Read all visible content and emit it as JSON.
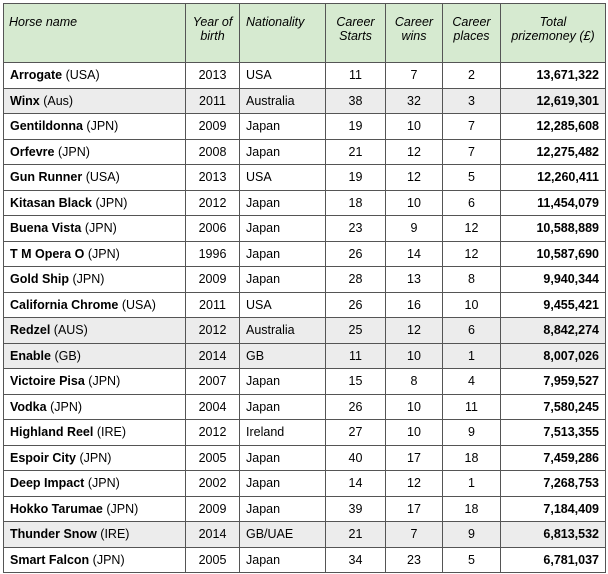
{
  "headers": {
    "name": "Horse name",
    "year": "Year of birth",
    "nationality": "Nationality",
    "starts": "Career Starts",
    "wins": "Career wins",
    "places": "Career places",
    "prize": "Total prizemoney (£)"
  },
  "rows": [
    {
      "name": "Arrogate",
      "country": "(USA)",
      "year": "2013",
      "nationality": "USA",
      "starts": "11",
      "wins": "7",
      "places": "2",
      "prize": "13,671,322",
      "shaded": false
    },
    {
      "name": "Winx",
      "country": "(Aus)",
      "year": "2011",
      "nationality": "Australia",
      "starts": "38",
      "wins": "32",
      "places": "3",
      "prize": "12,619,301",
      "shaded": true
    },
    {
      "name": "Gentildonna",
      "country": "(JPN)",
      "year": "2009",
      "nationality": "Japan",
      "starts": "19",
      "wins": "10",
      "places": "7",
      "prize": "12,285,608",
      "shaded": false
    },
    {
      "name": "Orfevre",
      "country": "(JPN)",
      "year": "2008",
      "nationality": "Japan",
      "starts": "21",
      "wins": "12",
      "places": "7",
      "prize": "12,275,482",
      "shaded": false
    },
    {
      "name": "Gun Runner",
      "country": "(USA)",
      "year": "2013",
      "nationality": "USA",
      "starts": "19",
      "wins": "12",
      "places": "5",
      "prize": "12,260,411",
      "shaded": false
    },
    {
      "name": "Kitasan Black",
      "country": "(JPN)",
      "year": "2012",
      "nationality": "Japan",
      "starts": "18",
      "wins": "10",
      "places": "6",
      "prize": "11,454,079",
      "shaded": false
    },
    {
      "name": "Buena Vista",
      "country": "(JPN)",
      "year": "2006",
      "nationality": "Japan",
      "starts": "23",
      "wins": "9",
      "places": "12",
      "prize": "10,588,889",
      "shaded": false
    },
    {
      "name": "T M Opera O",
      "country": "(JPN)",
      "year": "1996",
      "nationality": "Japan",
      "starts": "26",
      "wins": "14",
      "places": "12",
      "prize": "10,587,690",
      "shaded": false
    },
    {
      "name": "Gold Ship",
      "country": "(JPN)",
      "year": "2009",
      "nationality": "Japan",
      "starts": "28",
      "wins": "13",
      "places": "8",
      "prize": "9,940,344",
      "shaded": false
    },
    {
      "name": "California Chrome",
      "country": "(USA)",
      "year": "2011",
      "nationality": "USA",
      "starts": "26",
      "wins": "16",
      "places": "10",
      "prize": "9,455,421",
      "shaded": false
    },
    {
      "name": "Redzel",
      "country": "(AUS)",
      "year": "2012",
      "nationality": "Australia",
      "starts": "25",
      "wins": "12",
      "places": "6",
      "prize": "8,842,274",
      "shaded": true
    },
    {
      "name": "Enable",
      "country": "(GB)",
      "year": "2014",
      "nationality": "GB",
      "starts": "11",
      "wins": "10",
      "places": "1",
      "prize": "8,007,026",
      "shaded": true
    },
    {
      "name": "Victoire Pisa",
      "country": "(JPN)",
      "year": "2007",
      "nationality": "Japan",
      "starts": "15",
      "wins": "8",
      "places": "4",
      "prize": "7,959,527",
      "shaded": false
    },
    {
      "name": "Vodka",
      "country": "(JPN)",
      "year": "2004",
      "nationality": "Japan",
      "starts": "26",
      "wins": "10",
      "places": "11",
      "prize": "7,580,245",
      "shaded": false
    },
    {
      "name": "Highland Reel",
      "country": "(IRE)",
      "year": "2012",
      "nationality": "Ireland",
      "starts": "27",
      "wins": "10",
      "places": "9",
      "prize": "7,513,355",
      "shaded": false
    },
    {
      "name": "Espoir City",
      "country": "(JPN)",
      "year": "2005",
      "nationality": "Japan",
      "starts": "40",
      "wins": "17",
      "places": "18",
      "prize": "7,459,286",
      "shaded": false
    },
    {
      "name": "Deep Impact",
      "country": "(JPN)",
      "year": "2002",
      "nationality": "Japan",
      "starts": "14",
      "wins": "12",
      "places": "1",
      "prize": "7,268,753",
      "shaded": false
    },
    {
      "name": "Hokko Tarumae",
      "country": "(JPN)",
      "year": "2009",
      "nationality": "Japan",
      "starts": "39",
      "wins": "17",
      "places": "18",
      "prize": "7,184,409",
      "shaded": false
    },
    {
      "name": "Thunder Snow",
      "country": "(IRE)",
      "year": "2014",
      "nationality": "GB/UAE",
      "starts": "21",
      "wins": "7",
      "places": "9",
      "prize": "6,813,532",
      "shaded": true
    },
    {
      "name": "Smart Falcon",
      "country": "(JPN)",
      "year": "2005",
      "nationality": "Japan",
      "starts": "34",
      "wins": "23",
      "places": "5",
      "prize": "6,781,037",
      "shaded": false
    }
  ],
  "colors": {
    "header_bg": "#d6ead0",
    "shaded_row_bg": "#ececec",
    "border": "#555555"
  }
}
